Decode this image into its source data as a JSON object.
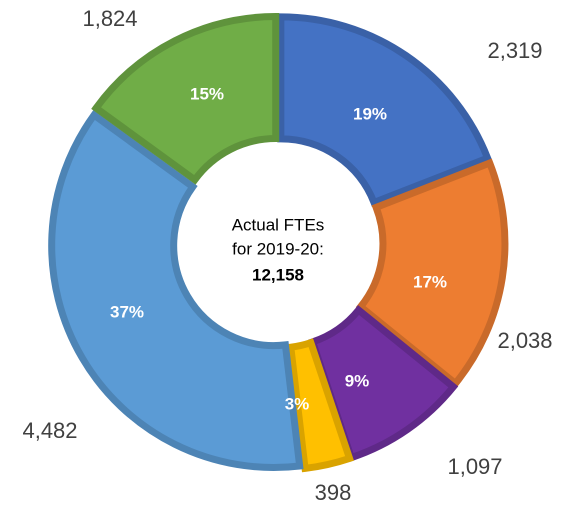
{
  "chart_data": {
    "type": "donut",
    "categories": [
      null,
      null,
      null,
      null,
      null,
      null
    ],
    "values": [
      2319,
      2038,
      1097,
      398,
      4482,
      1824
    ],
    "value_labels": [
      "2,319",
      "2,038",
      "1,097",
      "398",
      "4,482",
      "1,824"
    ],
    "percent_labels": [
      "19%",
      "17%",
      "9%",
      "3%",
      "37%",
      "15%"
    ],
    "colors": [
      "#4472c4",
      "#ed7d31",
      "#7030a0",
      "#ffc000",
      "#5b9bd5",
      "#70ad47"
    ],
    "center_text": [
      "Actual FTEs",
      "for 2019-20:"
    ],
    "total": 12158,
    "total_label": "12,158"
  }
}
